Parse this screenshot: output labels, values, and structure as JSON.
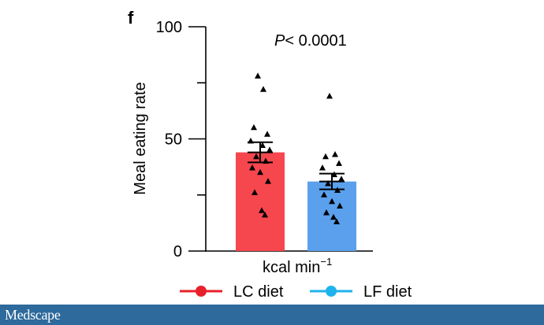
{
  "panel_label": "f",
  "chart_data": {
    "type": "bar",
    "categories": [
      "LC diet",
      "LF diet"
    ],
    "values": [
      44,
      31
    ],
    "error": [
      4.5,
      3.5
    ],
    "points": [
      [
        78,
        72,
        55,
        52,
        49,
        47,
        45,
        42,
        40,
        37,
        35,
        31,
        26,
        18,
        16
      ],
      [
        69,
        43,
        42,
        39,
        37,
        34,
        32,
        30,
        27,
        25,
        22,
        20,
        17,
        15,
        13
      ]
    ],
    "colors": [
      "#f5474d",
      "#5aa0ec"
    ],
    "title": "",
    "xlabel": "kcal min",
    "xlabel_superscript": "−1",
    "ylabel": "Meal eating rate",
    "ylim": [
      0,
      100
    ],
    "yticks": [
      0,
      50,
      100
    ],
    "yticks_minor": [
      25,
      75
    ],
    "annotation": "< 0.0001",
    "annotation_prefix": "P",
    "grid": false,
    "legend_position": "bottom"
  },
  "legend": [
    {
      "label": "LC diet",
      "color": "#e8202a"
    },
    {
      "label": "LF diet",
      "color": "#1fb3ec"
    }
  ],
  "footer": {
    "brand": "Medscape",
    "color": "#2e6a9c"
  }
}
